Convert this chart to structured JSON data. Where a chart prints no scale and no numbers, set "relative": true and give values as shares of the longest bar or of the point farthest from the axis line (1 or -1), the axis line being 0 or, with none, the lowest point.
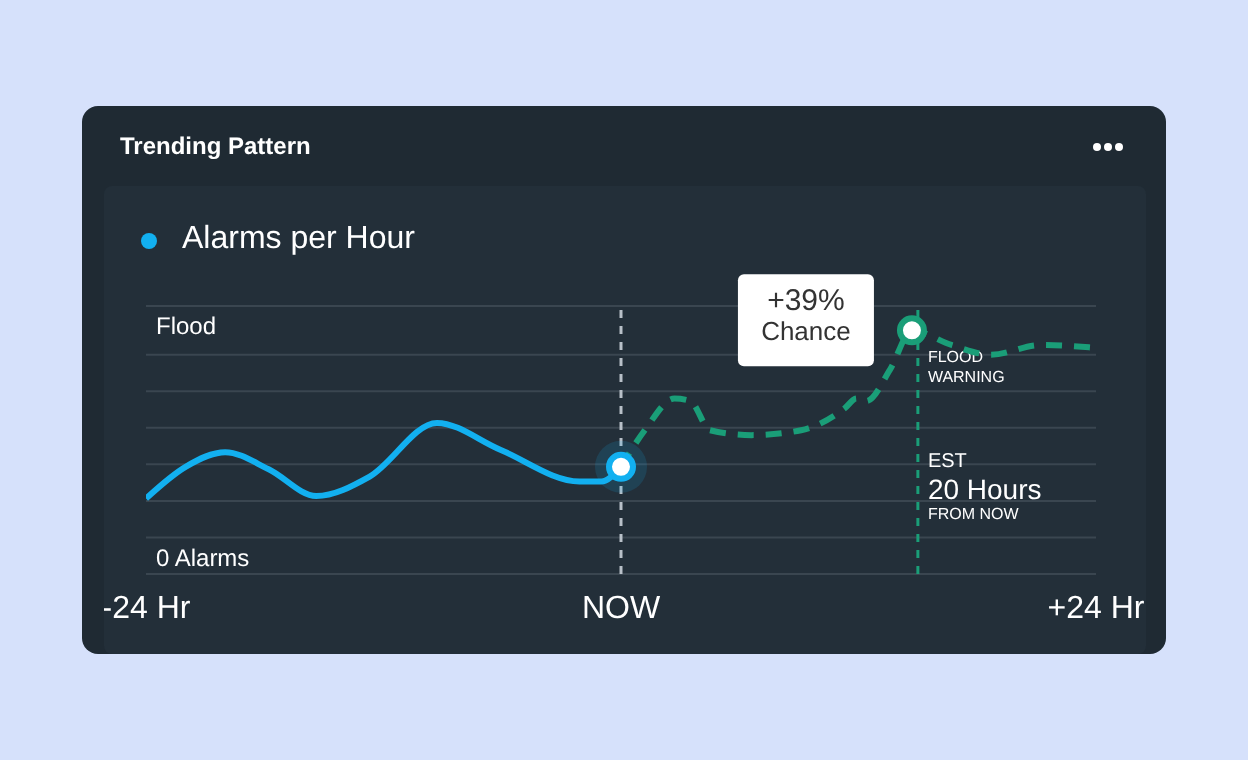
{
  "chart_data": {
    "type": "line",
    "title": "Trending Pattern",
    "relative": true,
    "xlim": [
      -24,
      24
    ],
    "xticks": [
      {
        "value": -24,
        "label": "-24 Hr"
      },
      {
        "value": 0,
        "label": "NOW"
      },
      {
        "value": 24,
        "label": "+24 Hr"
      }
    ],
    "grid": "y",
    "legend": "top left",
    "marker": "none",
    "series": [
      {
        "name": "Alarms per Hour",
        "color": "#12b0f0",
        "line_style": "solid",
        "x": [
          -24,
          -22,
          -20,
          -17.8,
          -15.4,
          -12.7,
          -9.3,
          -6.1,
          -2.1,
          -1,
          0
        ],
        "values": [
          0.31,
          0.44,
          0.5,
          0.43,
          0.32,
          0.4,
          0.62,
          0.51,
          0.38,
          0.38,
          0.44
        ]
      },
      {
        "color": "#1a9e78",
        "line_style": "dashed",
        "x": [
          0,
          1.2,
          2.7,
          3.5,
          4.5,
          6.6,
          9.1,
          11.3,
          11.9,
          12.4,
          13.6,
          14.7,
          16.7,
          18.7,
          21.2,
          23.7
        ],
        "values": [
          0.44,
          0.59,
          0.72,
          0.71,
          0.59,
          0.57,
          0.59,
          0.68,
          0.72,
          0.71,
          0.84,
          1,
          0.94,
          0.9,
          0.94,
          0.93
        ]
      }
    ],
    "ref_lines": [
      {
        "axis": "x",
        "value": 0,
        "color": "#b8c0c8",
        "line_style": "dashed"
      },
      {
        "axis": "x",
        "value": 15,
        "label": "FLOOD\nWARNING",
        "color": "#1a9e78",
        "line_style": "dashed"
      }
    ],
    "annotations": [
      "Flood",
      "0 Alarms",
      {
        "text": "+39%\nChance",
        "x": 14.7,
        "y": 1
      },
      {
        "text": "EST\n20 Hours\nFROM NOW",
        "x": 15,
        "y": 0.44
      }
    ]
  }
}
